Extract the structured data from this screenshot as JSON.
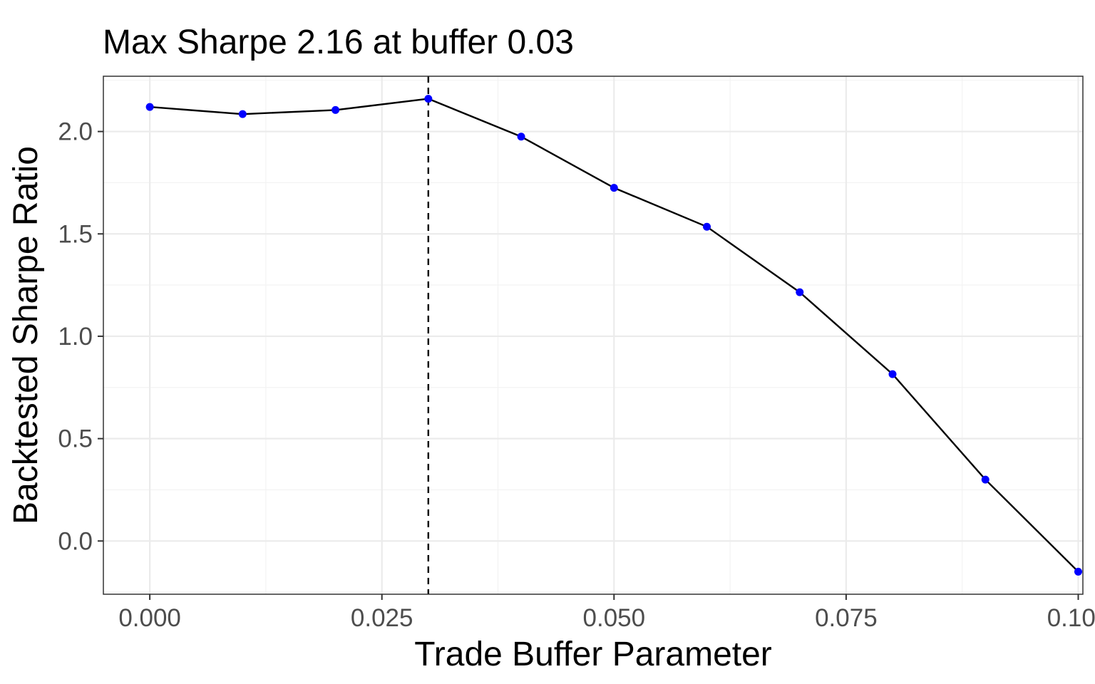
{
  "chart_data": {
    "type": "line",
    "title": "Max Sharpe 2.16 at buffer 0.03",
    "xlabel": "Trade Buffer Parameter",
    "ylabel": "Backtested Sharpe Ratio",
    "xlim": [
      -0.005,
      0.1005
    ],
    "ylim": [
      -0.26,
      2.27
    ],
    "x_ticks": [
      0.0,
      0.025,
      0.05,
      0.075,
      0.1
    ],
    "x_tick_labels": [
      "0.000",
      "0.025",
      "0.050",
      "0.075",
      "0.100"
    ],
    "y_ticks": [
      0.0,
      0.5,
      1.0,
      1.5,
      2.0
    ],
    "y_tick_labels": [
      "0.0",
      "0.5",
      "1.0",
      "1.5",
      "2.0"
    ],
    "grid": true,
    "series": [
      {
        "x": [
          0.0,
          0.01,
          0.02,
          0.03,
          0.04,
          0.05,
          0.06,
          0.07,
          0.08,
          0.09,
          0.1
        ],
        "values": [
          2.12,
          2.085,
          2.105,
          2.16,
          1.975,
          1.725,
          1.535,
          1.215,
          0.815,
          0.3,
          -0.15
        ],
        "line_color": "#000000",
        "point_color": "#0000ff"
      }
    ],
    "vline": {
      "x": 0.03,
      "style": "dashed",
      "color": "#000000"
    }
  }
}
